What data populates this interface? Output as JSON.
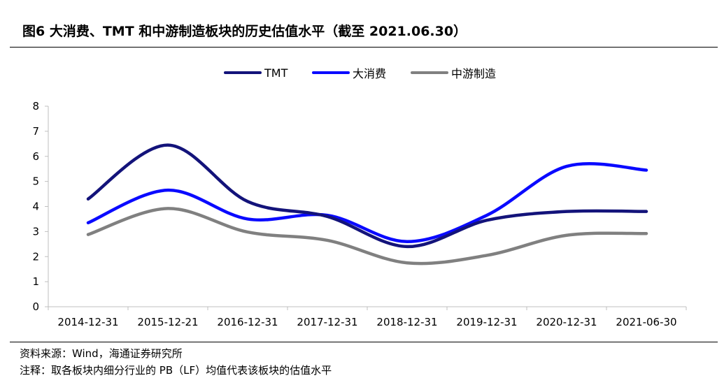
{
  "title": "图6  大消费、TMT 和中游制造板块的历史估值水平（截至 2021.06.30）",
  "footer": {
    "source": "资料来源：Wind，海通证券研究所",
    "note": "注释：取各板块内细分行业的 PB（LF）均值代表该板块的估值水平"
  },
  "chart_data": {
    "type": "line",
    "title": "",
    "xlabel": "",
    "ylabel": "",
    "ylim": [
      0,
      8
    ],
    "yticks": [
      "0",
      "1",
      "2",
      "3",
      "4",
      "5",
      "6",
      "7",
      "8"
    ],
    "categories": [
      "2014-12-31",
      "2015-12-21",
      "2016-12-31",
      "2017-12-31",
      "2018-12-31",
      "2019-12-31",
      "2020-12-31",
      "2021-06-30"
    ],
    "series": [
      {
        "name": "TMT",
        "color": "#13137a",
        "values": [
          4.3,
          6.45,
          4.2,
          3.6,
          2.4,
          3.45,
          3.8,
          3.8
        ]
      },
      {
        "name": "大消费",
        "color": "#0a0aff",
        "values": [
          3.35,
          4.65,
          3.5,
          3.65,
          2.6,
          3.65,
          5.6,
          5.45
        ]
      },
      {
        "name": "中游制造",
        "color": "#808080",
        "values": [
          2.88,
          3.92,
          2.98,
          2.65,
          1.75,
          2.05,
          2.85,
          2.92
        ]
      }
    ],
    "legend": "top-center",
    "grid": false,
    "smooth": true
  }
}
